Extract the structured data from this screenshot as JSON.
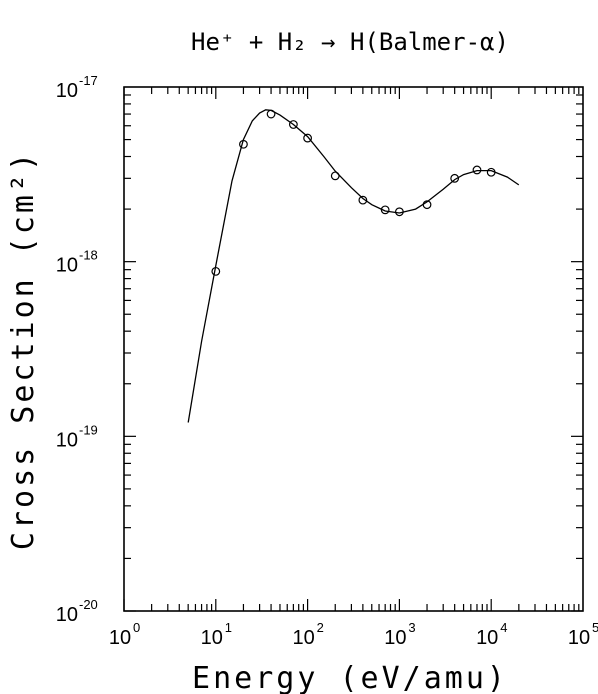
{
  "chart_data": {
    "type": "scatter",
    "title": "He⁺ + H₂ → H(Balmer-α)",
    "xlabel": "Energy (eV/amu)",
    "ylabel": "Cross Section (cm²)",
    "x_scale": "log",
    "y_scale": "log",
    "xlim": [
      1,
      100000
    ],
    "ylim": [
      1e-20,
      1e-17
    ],
    "x_ticks": [
      {
        "base": "10",
        "exp": "0",
        "value": 1
      },
      {
        "base": "10",
        "exp": "1",
        "value": 10
      },
      {
        "base": "10",
        "exp": "2",
        "value": 100
      },
      {
        "base": "10",
        "exp": "3",
        "value": 1000
      },
      {
        "base": "10",
        "exp": "4",
        "value": 10000
      },
      {
        "base": "10",
        "exp": "5",
        "value": 100000
      }
    ],
    "y_ticks": [
      {
        "base": "10",
        "exp": "-20",
        "value": 1e-20
      },
      {
        "base": "10",
        "exp": "-19",
        "value": 1e-19
      },
      {
        "base": "10",
        "exp": "-18",
        "value": 1e-18
      },
      {
        "base": "10",
        "exp": "-17",
        "value": 1e-17
      }
    ],
    "series": [
      {
        "style": "markers",
        "marker": "open-circle",
        "x": [
          10,
          20,
          40,
          70,
          100,
          200,
          400,
          700,
          1000,
          2000,
          4000,
          7000,
          10000
        ],
        "y": [
          8.8e-19,
          4.7e-18,
          7e-18,
          6.1e-18,
          5.1e-18,
          3.1e-18,
          2.25e-18,
          1.98e-18,
          1.93e-18,
          2.12e-18,
          3e-18,
          3.35e-18,
          3.25e-18
        ]
      },
      {
        "style": "line",
        "x": [
          5,
          7,
          10,
          15,
          20,
          25,
          30,
          35,
          40,
          50,
          70,
          100,
          150,
          200,
          300,
          400,
          500,
          700,
          1000,
          1500,
          2000,
          3000,
          4000,
          5000,
          7000,
          10000,
          15000,
          20000
        ],
        "y": [
          1.2e-19,
          3.5e-19,
          9.5e-19,
          2.9e-18,
          5e-18,
          6.4e-18,
          7.1e-18,
          7.4e-18,
          7.35e-18,
          6.9e-18,
          6.1e-18,
          5.2e-18,
          4e-18,
          3.3e-18,
          2.65e-18,
          2.3e-18,
          2.12e-18,
          1.95e-18,
          1.9e-18,
          2e-18,
          2.2e-18,
          2.6e-18,
          2.95e-18,
          3.15e-18,
          3.32e-18,
          3.32e-18,
          3.05e-18,
          2.75e-18
        ]
      }
    ]
  }
}
